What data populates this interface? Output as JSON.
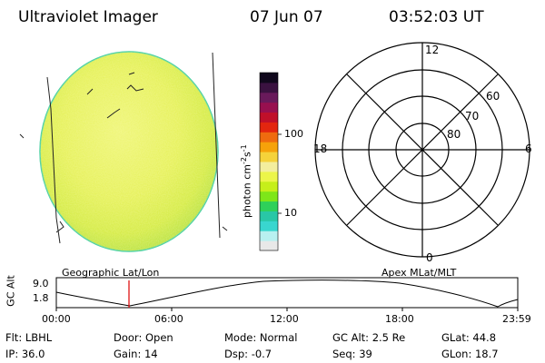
{
  "header": {
    "instrument": "Ultraviolet Imager",
    "date": "07 Jun 07",
    "time": "03:52:03 UT"
  },
  "colorbar": {
    "label": "photon cm^-2 s^-1",
    "label_parts": {
      "base": "photon cm",
      "exp1": "-2",
      "mid": "s",
      "exp2": "-1"
    },
    "ticks": [
      "100",
      "10"
    ],
    "scale": "log",
    "colors": [
      "#e8e8e8",
      "#b8f0f0",
      "#39d6cf",
      "#29c7a6",
      "#2fd05a",
      "#7ee619",
      "#c6ef1a",
      "#ecf54a",
      "#f3ee9e",
      "#f5d23a",
      "#f6a20a",
      "#ef6b0f",
      "#e3260f",
      "#c0102a",
      "#98104f",
      "#691a5b",
      "#3a1240",
      "#10081c"
    ]
  },
  "panels": {
    "left_label": "Geographic Lat/Lon",
    "right_label": "Apex MLat/MLT"
  },
  "polar": {
    "mlt_labels": {
      "top": "12",
      "left": "18",
      "right": "6",
      "bottom": "0"
    },
    "lat_labels": [
      "60",
      "70",
      "80"
    ]
  },
  "altitude_plot": {
    "ylabel": "GC Alt",
    "yticks": [
      "9.0",
      "1.8"
    ],
    "xticks": [
      "00:00",
      "06:00",
      "12:00",
      "18:00",
      "23:59"
    ],
    "marker_time": "03:52"
  },
  "status": {
    "row1": [
      {
        "key": "Flt:",
        "value": "LBHL"
      },
      {
        "key": "Door:",
        "value": "Open"
      },
      {
        "key": "Mode:",
        "value": "Normal"
      },
      {
        "key": "GC Alt:",
        "value": "2.5 Re"
      },
      {
        "key": "GLat:",
        "value": "44.8"
      }
    ],
    "row2": [
      {
        "key": "IP:",
        "value": "36.0"
      },
      {
        "key": "Gain:",
        "value": "14"
      },
      {
        "key": "Dsp:",
        "value": "-0.7"
      },
      {
        "key": "Seq:",
        "value": "39"
      },
      {
        "key": "GLon:",
        "value": "18.7"
      }
    ]
  }
}
